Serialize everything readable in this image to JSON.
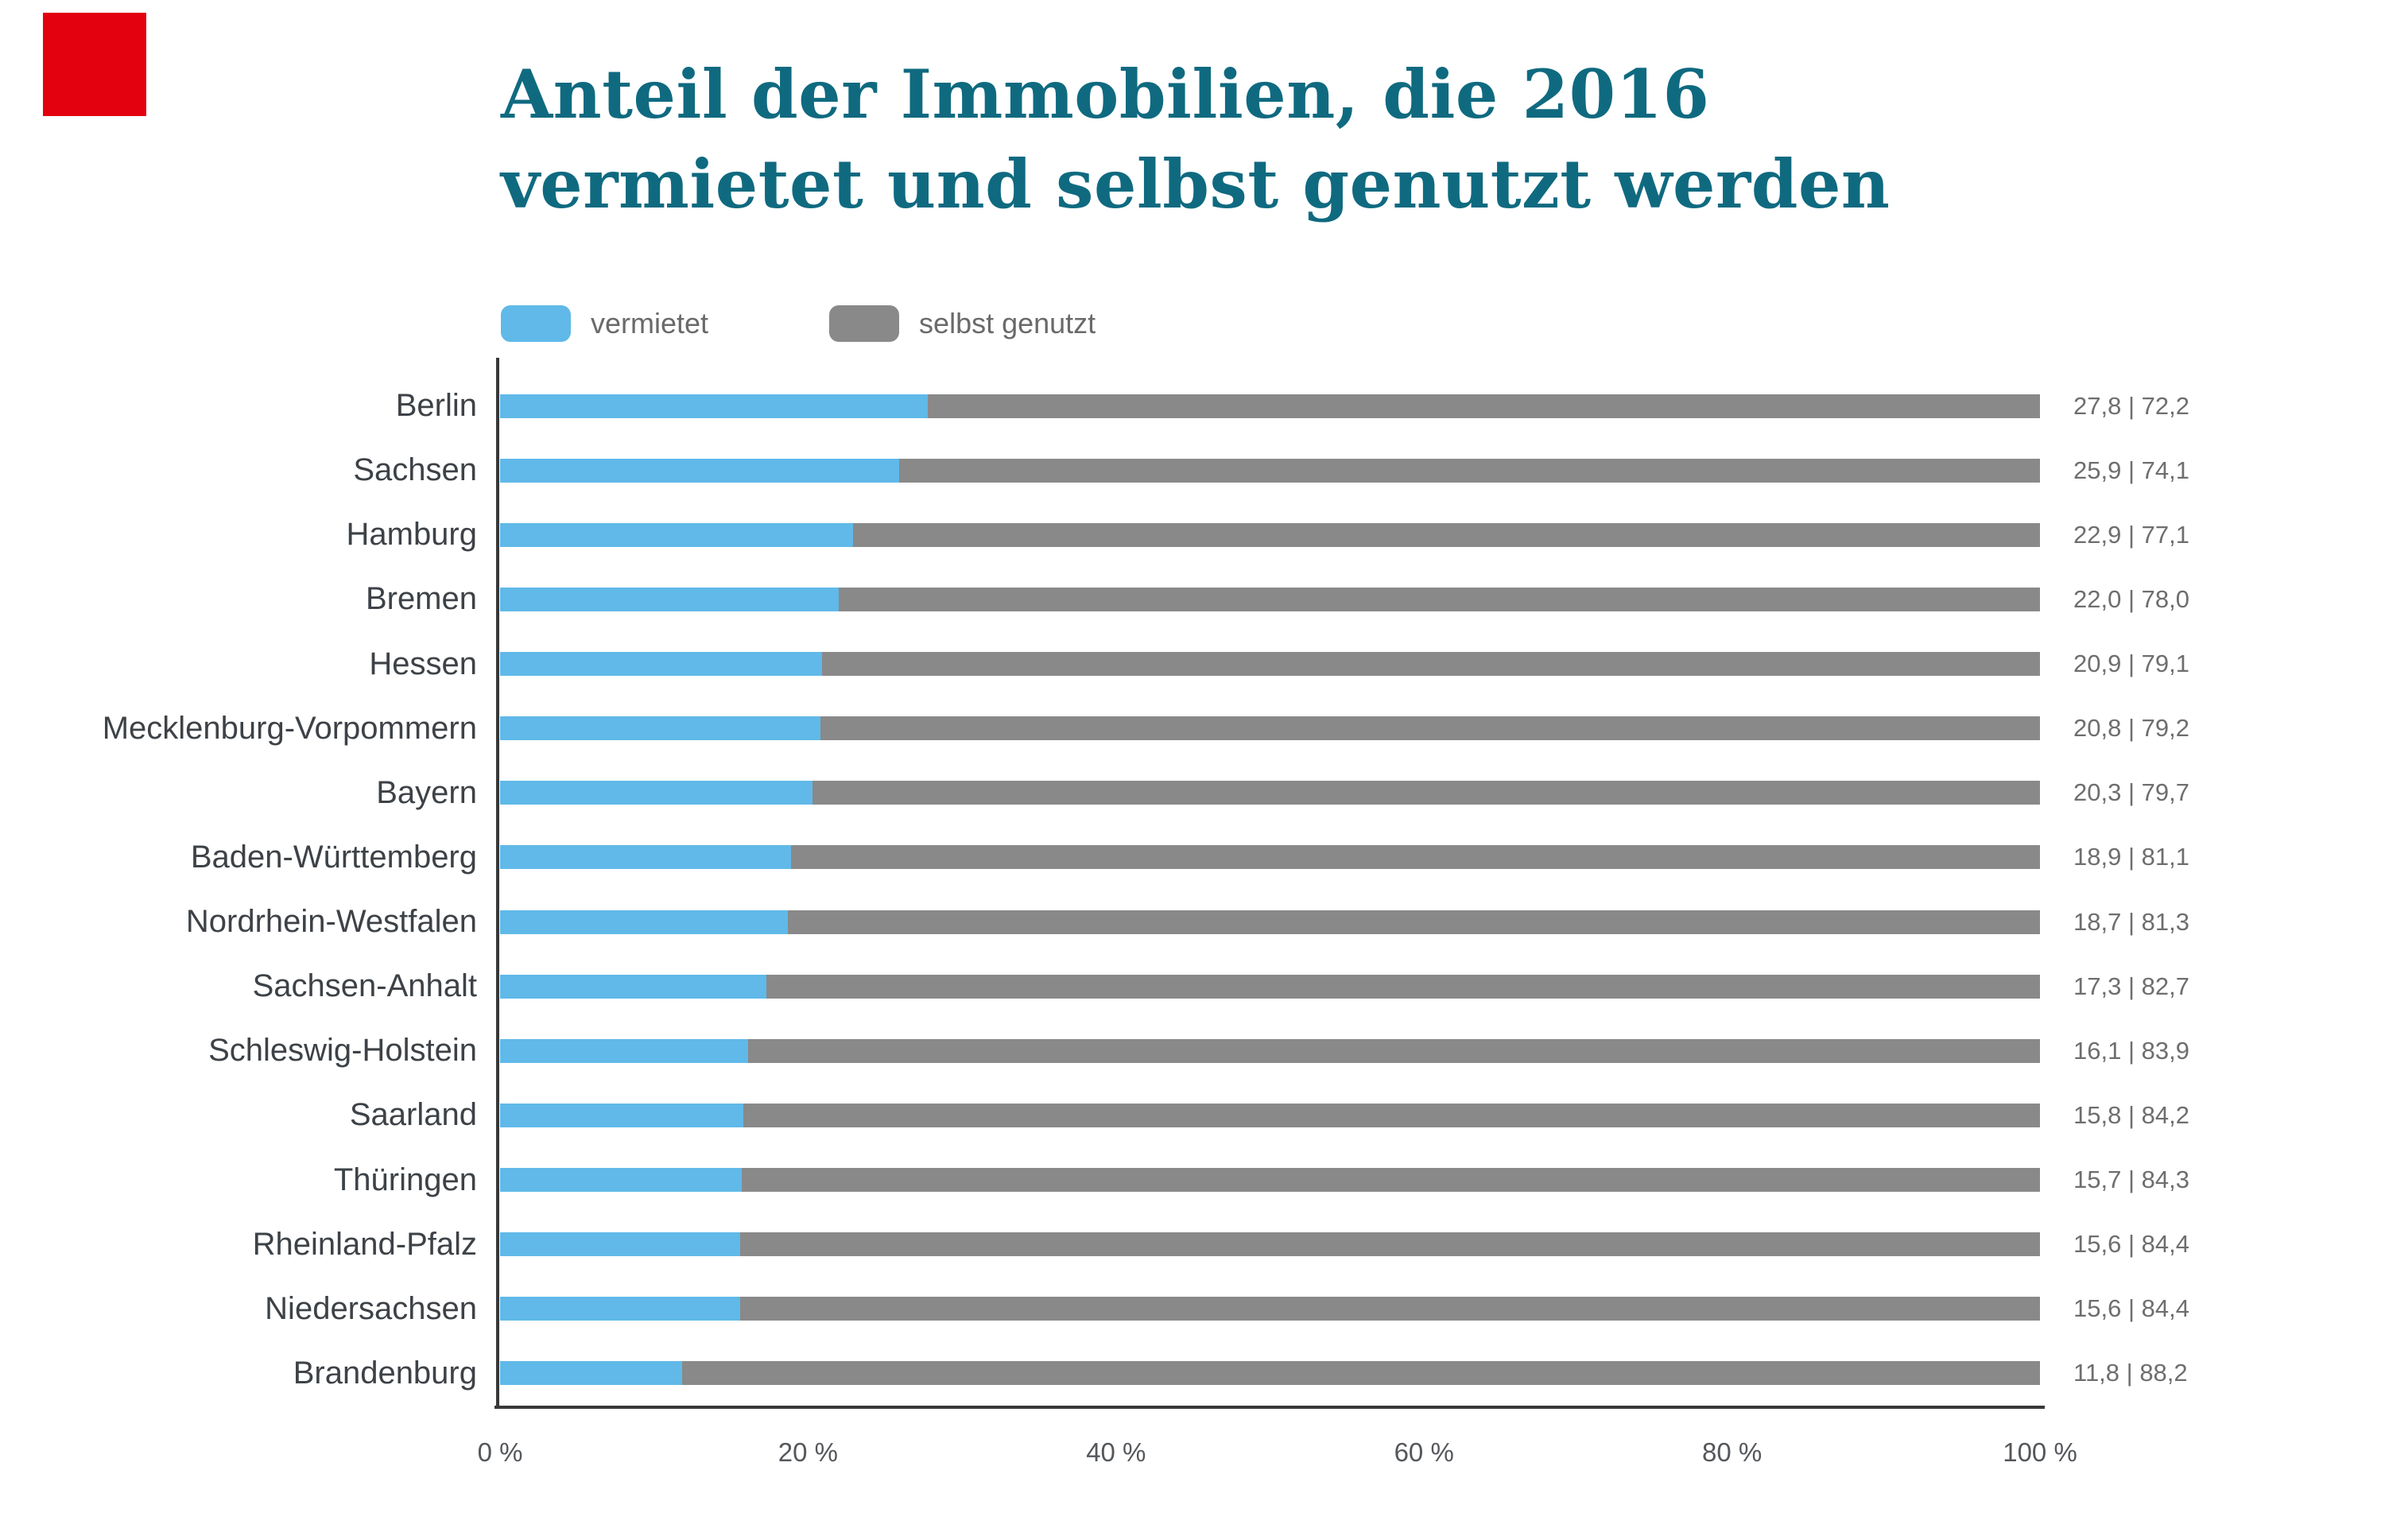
{
  "logo": {
    "color": "#e3000f"
  },
  "title": {
    "line1": "Anteil der Immobilien, die 2016",
    "line2": "vermietet und selbst genutzt werden",
    "color": "#0f6a80"
  },
  "legend": {
    "vermietet": "vermietet",
    "selbst": "selbst genutzt"
  },
  "colors": {
    "vermietet": "#60b9e8",
    "selbst": "#898989",
    "axis": "#383838"
  },
  "chart_data": {
    "type": "bar",
    "orientation": "horizontal",
    "stacked": true,
    "title": "Anteil der Immobilien, die 2016 vermietet und selbst genutzt werden",
    "legend_position": "top",
    "grid": false,
    "xlim": [
      0,
      100
    ],
    "x_ticks": [
      "0 %",
      "20 %",
      "40 %",
      "60 %",
      "80 %",
      "100 %"
    ],
    "x_tick_positions": [
      0,
      20,
      40,
      60,
      80,
      100
    ],
    "categories": [
      "Berlin",
      "Sachsen",
      "Hamburg",
      "Bremen",
      "Hessen",
      "Mecklenburg-Vorpommern",
      "Bayern",
      "Baden-Württemberg",
      "Nordrhein-Westfalen",
      "Sachsen-Anhalt",
      "Schleswig-Holstein",
      "Saarland",
      "Thüringen",
      "Rheinland-Pfalz",
      "Niedersachsen",
      "Brandenburg"
    ],
    "series": [
      {
        "name": "vermietet",
        "color": "#60b9e8",
        "values": [
          27.8,
          25.9,
          22.9,
          22.0,
          20.9,
          20.8,
          20.3,
          18.9,
          18.7,
          17.3,
          16.1,
          15.8,
          15.7,
          15.6,
          15.6,
          11.8
        ]
      },
      {
        "name": "selbst genutzt",
        "color": "#898989",
        "values": [
          72.2,
          74.1,
          77.1,
          78.0,
          79.1,
          79.2,
          79.7,
          81.1,
          81.3,
          82.7,
          83.9,
          84.2,
          84.3,
          84.4,
          84.4,
          88.2
        ]
      }
    ],
    "value_labels": [
      "27,8 | 72,2",
      "25,9 | 74,1",
      "22,9 | 77,1",
      "22,0 | 78,0",
      "20,9 | 79,1",
      "20,8 | 79,2",
      "20,3 | 79,7",
      "18,9 | 81,1",
      "18,7 | 81,3",
      "17,3 | 82,7",
      "16,1 | 83,9",
      "15,8 | 84,2",
      "15,7 | 84,3",
      "15,6 | 84,4",
      "15,6 | 84,4",
      "11,8 | 88,2"
    ]
  }
}
